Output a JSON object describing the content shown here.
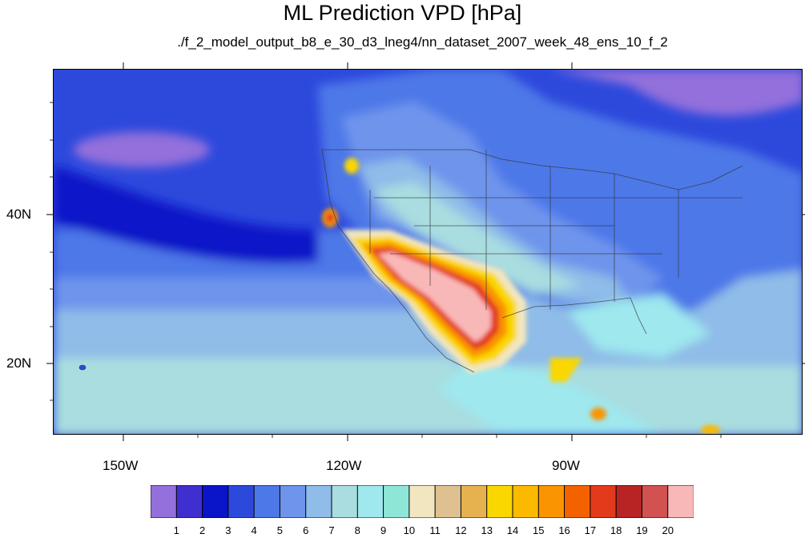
{
  "title": "ML Prediction VPD [hPa]",
  "subtitle": "./f_2_model_output_b8_e_30_d3_lneg4/nn_dataset_2007_week_48_ens_10_f_2",
  "map": {
    "lat_labels": [
      "40N",
      "20N"
    ],
    "lon_labels": [
      "150W",
      "120W",
      "90W"
    ],
    "lon_range": [
      -160,
      -61
    ],
    "lat_range": [
      10,
      59
    ]
  },
  "colorbar": {
    "labels": [
      "1",
      "2",
      "3",
      "4",
      "5",
      "6",
      "7",
      "8",
      "9",
      "10",
      "11",
      "12",
      "13",
      "14",
      "15",
      "16",
      "17",
      "18",
      "19",
      "20"
    ],
    "colors": [
      "#9370db",
      "#3f2fd0",
      "#0a14c8",
      "#2d49dc",
      "#4d78e8",
      "#6e94ec",
      "#8fbce8",
      "#a9dde0",
      "#9ee8ee",
      "#8ee6d6",
      "#f2e6c0",
      "#dfc191",
      "#e6b24f",
      "#fad700",
      "#fbb900",
      "#fa9400",
      "#f46200",
      "#e33a1b",
      "#b82424",
      "#d25252",
      "#f9b8b8"
    ]
  }
}
